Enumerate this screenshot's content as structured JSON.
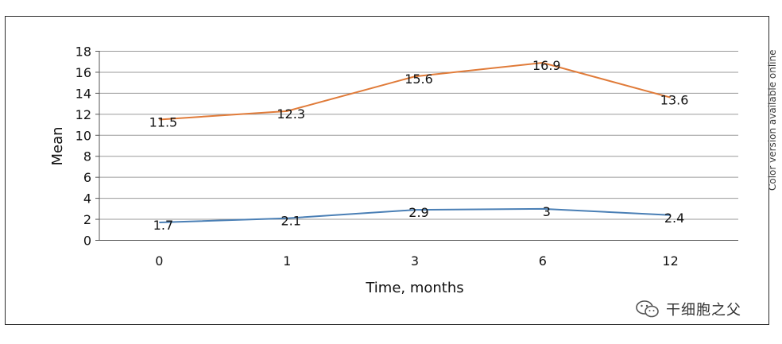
{
  "chart_data": {
    "type": "line",
    "categories": [
      "0",
      "1",
      "3",
      "6",
      "12"
    ],
    "series": [
      {
        "color": "#e07b39",
        "values": [
          11.5,
          12.3,
          15.6,
          16.9,
          13.6
        ]
      },
      {
        "color": "#4a7fb5",
        "values": [
          1.7,
          2.1,
          2.9,
          3,
          2.4
        ]
      }
    ],
    "data_labels": [
      [
        "11.5",
        "12.3",
        "15.6",
        "16.9",
        "13.6"
      ],
      [
        "1.7",
        "2.1",
        "2.9",
        "3",
        "2.4"
      ]
    ],
    "xlabel": "Time, months",
    "ylabel": "Mean",
    "ylim": [
      0,
      18
    ],
    "yticks": [
      "0",
      "2",
      "4",
      "6",
      "8",
      "10",
      "12",
      "14",
      "16",
      "18"
    ],
    "grid": "horizontal",
    "legend": "none"
  },
  "side_note": "Color version available online",
  "watermark": {
    "text": "干细胞之父",
    "icon": "wechat-icon"
  }
}
